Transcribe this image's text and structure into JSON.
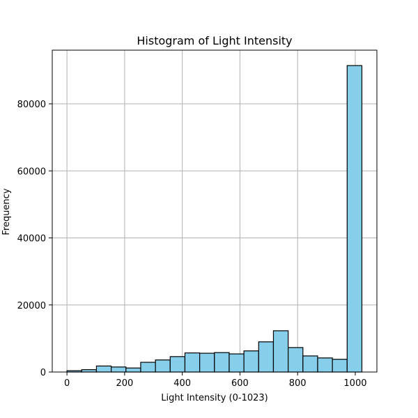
{
  "chart_data": {
    "type": "bar",
    "title": "Histogram of Light Intensity",
    "xlabel": "Light Intensity (0-1023)",
    "ylabel": "Frequency",
    "xlim": [
      -51,
      1075
    ],
    "ylim": [
      0,
      96000
    ],
    "grid": true,
    "bar_color": "#87ceeb",
    "edge_color": "#000000",
    "bin_edges": [
      0,
      51.15,
      102.3,
      153.45,
      204.6,
      255.75,
      306.9,
      358.05,
      409.2,
      460.35,
      511.5,
      562.65,
      613.8,
      664.95,
      716.1,
      767.25,
      818.4,
      869.55,
      920.7,
      971.85,
      1023
    ],
    "values": [
      400,
      700,
      1800,
      1500,
      1200,
      2900,
      3600,
      4600,
      5700,
      5600,
      5800,
      5400,
      6300,
      9000,
      12300,
      7300,
      4800,
      4200,
      3800,
      91400
    ],
    "x_ticks": [
      0,
      200,
      400,
      600,
      800,
      1000
    ],
    "x_tick_labels": [
      "0",
      "200",
      "400",
      "600",
      "800",
      "1000"
    ],
    "y_ticks": [
      0,
      20000,
      40000,
      60000,
      80000
    ],
    "y_tick_labels": [
      "0",
      "20000",
      "40000",
      "60000",
      "80000"
    ]
  }
}
